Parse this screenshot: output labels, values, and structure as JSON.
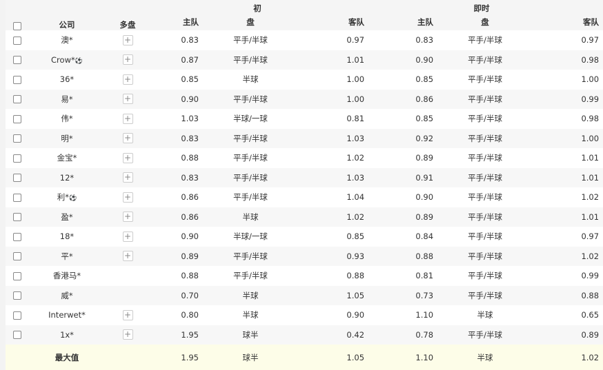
{
  "header": {
    "company": "公司",
    "multi": "多盘",
    "initial": "初",
    "live": "即时",
    "home": "主队",
    "line": "盘",
    "away": "客队"
  },
  "rows": [
    {
      "company": "澳*",
      "ball": false,
      "plus": true,
      "i_home": "0.83",
      "i_line": "平手/半球",
      "i_away": "0.97",
      "l_home": "0.83",
      "l_line": "平手/半球",
      "l_away": "0.97"
    },
    {
      "company": "Crow*",
      "ball": true,
      "plus": true,
      "i_home": "0.87",
      "i_line": "平手/半球",
      "i_away": "1.01",
      "l_home": "0.90",
      "l_line": "平手/半球",
      "l_away": "0.98"
    },
    {
      "company": "36*",
      "ball": false,
      "plus": true,
      "i_home": "0.85",
      "i_line": "半球",
      "i_away": "1.00",
      "l_home": "0.85",
      "l_line": "平手/半球",
      "l_away": "1.00"
    },
    {
      "company": "易*",
      "ball": false,
      "plus": true,
      "i_home": "0.90",
      "i_line": "平手/半球",
      "i_away": "1.00",
      "l_home": "0.86",
      "l_line": "平手/半球",
      "l_away": "0.99"
    },
    {
      "company": "伟*",
      "ball": false,
      "plus": true,
      "i_home": "1.03",
      "i_line": "半球/一球",
      "i_away": "0.81",
      "l_home": "0.85",
      "l_line": "平手/半球",
      "l_away": "0.98"
    },
    {
      "company": "明*",
      "ball": false,
      "plus": true,
      "i_home": "0.83",
      "i_line": "平手/半球",
      "i_away": "1.03",
      "l_home": "0.92",
      "l_line": "平手/半球",
      "l_away": "1.00"
    },
    {
      "company": "金宝*",
      "ball": false,
      "plus": true,
      "i_home": "0.88",
      "i_line": "平手/半球",
      "i_away": "1.02",
      "l_home": "0.89",
      "l_line": "平手/半球",
      "l_away": "1.01"
    },
    {
      "company": "12*",
      "ball": false,
      "plus": true,
      "i_home": "0.83",
      "i_line": "平手/半球",
      "i_away": "1.03",
      "l_home": "0.91",
      "l_line": "平手/半球",
      "l_away": "1.01"
    },
    {
      "company": "利*",
      "ball": true,
      "plus": true,
      "i_home": "0.86",
      "i_line": "平手/半球",
      "i_away": "1.04",
      "l_home": "0.90",
      "l_line": "平手/半球",
      "l_away": "1.02"
    },
    {
      "company": "盈*",
      "ball": false,
      "plus": true,
      "i_home": "0.86",
      "i_line": "半球",
      "i_away": "1.02",
      "l_home": "0.89",
      "l_line": "平手/半球",
      "l_away": "1.01"
    },
    {
      "company": "18*",
      "ball": false,
      "plus": true,
      "i_home": "0.90",
      "i_line": "半球/一球",
      "i_away": "0.85",
      "l_home": "0.84",
      "l_line": "平手/半球",
      "l_away": "0.97"
    },
    {
      "company": "平*",
      "ball": false,
      "plus": true,
      "i_home": "0.89",
      "i_line": "平手/半球",
      "i_away": "0.93",
      "l_home": "0.88",
      "l_line": "平手/半球",
      "l_away": "1.02"
    },
    {
      "company": "香港马*",
      "ball": false,
      "plus": false,
      "i_home": "0.88",
      "i_line": "平手/半球",
      "i_away": "0.88",
      "l_home": "0.81",
      "l_line": "平手/半球",
      "l_away": "0.99"
    },
    {
      "company": "威*",
      "ball": false,
      "plus": false,
      "i_home": "0.70",
      "i_line": "半球",
      "i_away": "1.05",
      "l_home": "0.73",
      "l_line": "平手/半球",
      "l_away": "0.88"
    },
    {
      "company": "Interwet*",
      "ball": false,
      "plus": true,
      "i_home": "0.80",
      "i_line": "半球",
      "i_away": "0.90",
      "l_home": "1.10",
      "l_line": "半球",
      "l_away": "0.65"
    },
    {
      "company": "1x*",
      "ball": false,
      "plus": true,
      "i_home": "1.95",
      "i_line": "球半",
      "i_away": "0.42",
      "l_home": "0.78",
      "l_line": "平手/半球",
      "l_away": "0.89"
    }
  ],
  "max": {
    "label": "最大值",
    "i_home": "1.95",
    "i_line": "球半",
    "i_away": "1.05",
    "l_home": "1.10",
    "l_line": "半球",
    "l_away": "1.02"
  }
}
